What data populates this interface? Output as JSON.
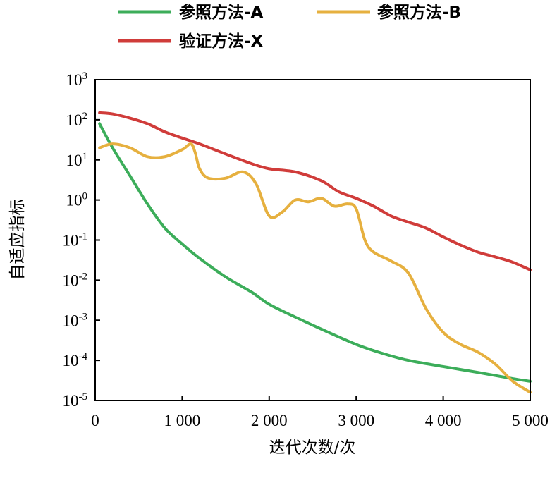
{
  "chart_data": {
    "type": "line",
    "xlabel": "迭代次数/次",
    "ylabel": "自适应指标",
    "xlim": [
      0,
      5000
    ],
    "ylim": [
      1e-05,
      1000
    ],
    "yscale": "log",
    "x_ticks": [
      0,
      1000,
      2000,
      3000,
      4000,
      5000
    ],
    "x_tick_labels": [
      "0",
      "1 000",
      "2 000",
      "3 000",
      "4 000",
      "5 000"
    ],
    "y_tick_exponents": [
      -5,
      -4,
      -3,
      -2,
      -1,
      0,
      1,
      2,
      3
    ],
    "y_tick_base": "10",
    "grid": false,
    "legend_position": "top",
    "series": [
      {
        "name": "参照方法-A",
        "color": "#3cad5a",
        "x": [
          50,
          200,
          400,
          600,
          800,
          1000,
          1200,
          1500,
          1800,
          2000,
          2300,
          2600,
          3000,
          3300,
          3600,
          4000,
          4400,
          4800,
          5000
        ],
        "y": [
          80,
          20,
          4,
          0.8,
          0.2,
          0.08,
          0.035,
          0.012,
          0.005,
          0.0025,
          0.0012,
          0.0006,
          0.00025,
          0.00015,
          0.0001,
          7e-05,
          5e-05,
          3.5e-05,
          3e-05
        ]
      },
      {
        "name": "参照方法-B",
        "color": "#e6b03f",
        "x": [
          50,
          200,
          400,
          600,
          800,
          1000,
          1100,
          1150,
          1200,
          1300,
          1500,
          1700,
          1850,
          2000,
          2150,
          2300,
          2450,
          2600,
          2750,
          2900,
          3000,
          3100,
          3200,
          3400,
          3600,
          3800,
          4000,
          4200,
          4400,
          4600,
          4800,
          5000
        ],
        "y": [
          20,
          25,
          20,
          12,
          12,
          18,
          25,
          15,
          6,
          3.5,
          3.5,
          5,
          2.5,
          0.4,
          0.5,
          1.0,
          0.9,
          1.1,
          0.7,
          0.8,
          0.6,
          0.1,
          0.05,
          0.03,
          0.015,
          0.002,
          0.0005,
          0.00025,
          0.00016,
          8e-05,
          3e-05,
          1.6e-05
        ]
      },
      {
        "name": "验证方法-X",
        "color": "#d03c3a",
        "x": [
          50,
          200,
          400,
          600,
          800,
          1000,
          1200,
          1500,
          1800,
          2000,
          2300,
          2600,
          2800,
          3000,
          3200,
          3400,
          3600,
          3800,
          4000,
          4200,
          4400,
          4600,
          4800,
          5000
        ],
        "y": [
          150,
          140,
          110,
          80,
          50,
          35,
          25,
          14,
          8,
          6,
          5,
          3,
          1.6,
          1.1,
          0.7,
          0.4,
          0.28,
          0.2,
          0.12,
          0.075,
          0.05,
          0.038,
          0.028,
          0.018
        ]
      }
    ]
  }
}
